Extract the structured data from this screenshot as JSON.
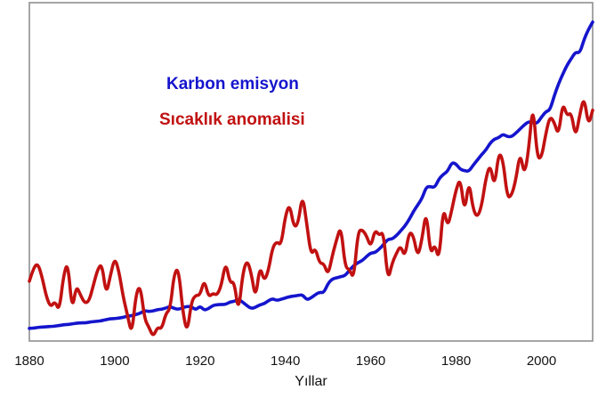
{
  "chart_data": {
    "type": "line",
    "title": "",
    "xlabel": "Yıllar",
    "x": {
      "start": 1880,
      "end": 2012,
      "step": 1
    },
    "xticks": [
      1880,
      1900,
      1920,
      1940,
      1960,
      1980,
      2000
    ],
    "y_axis_visible": false,
    "grid": false,
    "legend_position": "inside-top-left",
    "plot_border_color": "#8f8f8f",
    "background_color": "#ffffff",
    "tick_label_color": "#141414",
    "series": [
      {
        "id": "karbon-emisyon",
        "name": "Karbon emisyon",
        "color": "#1515cd",
        "render_ylim": [
          -0.15,
          10.3
        ],
        "values": [
          0.24,
          0.25,
          0.27,
          0.28,
          0.29,
          0.3,
          0.31,
          0.33,
          0.35,
          0.36,
          0.38,
          0.4,
          0.41,
          0.41,
          0.43,
          0.45,
          0.46,
          0.48,
          0.51,
          0.54,
          0.54,
          0.56,
          0.58,
          0.62,
          0.63,
          0.67,
          0.71,
          0.79,
          0.76,
          0.78,
          0.82,
          0.83,
          0.87,
          0.92,
          0.85,
          0.83,
          0.88,
          0.92,
          0.91,
          0.81,
          0.93,
          0.8,
          0.85,
          0.95,
          0.97,
          0.98,
          0.98,
          1.06,
          1.07,
          1.14,
          1.05,
          0.94,
          0.85,
          0.89,
          0.97,
          1.0,
          1.09,
          1.16,
          1.1,
          1.14,
          1.18,
          1.22,
          1.24,
          1.26,
          1.28,
          1.12,
          1.18,
          1.28,
          1.36,
          1.34,
          1.63,
          1.77,
          1.8,
          1.84,
          1.87,
          2.04,
          2.18,
          2.27,
          2.33,
          2.46,
          2.57,
          2.58,
          2.69,
          2.83,
          2.99,
          3.0,
          3.1,
          3.25,
          3.4,
          3.6,
          3.85,
          4.05,
          4.25,
          4.61,
          4.62,
          4.59,
          4.86,
          5.0,
          5.09,
          5.37,
          5.32,
          5.15,
          5.11,
          5.09,
          5.28,
          5.44,
          5.61,
          5.75,
          5.97,
          6.09,
          6.13,
          6.24,
          6.16,
          6.16,
          6.27,
          6.4,
          6.53,
          6.63,
          6.6,
          6.57,
          6.77,
          6.93,
          6.98,
          7.42,
          7.79,
          8.09,
          8.37,
          8.57,
          8.78,
          8.74,
          9.17,
          9.47,
          9.7
        ]
      },
      {
        "id": "sicaklik-anomalisi",
        "name": "Sıcaklık anomalisi",
        "color": "#c11111",
        "render_ylim": [
          -0.5,
          1.2
        ],
        "values": [
          -0.2,
          -0.13,
          -0.11,
          -0.18,
          -0.28,
          -0.33,
          -0.3,
          -0.35,
          -0.17,
          -0.1,
          -0.35,
          -0.22,
          -0.27,
          -0.31,
          -0.3,
          -0.22,
          -0.14,
          -0.11,
          -0.27,
          -0.17,
          -0.08,
          -0.15,
          -0.28,
          -0.37,
          -0.47,
          -0.26,
          -0.22,
          -0.39,
          -0.43,
          -0.48,
          -0.43,
          -0.44,
          -0.36,
          -0.34,
          -0.15,
          -0.14,
          -0.36,
          -0.46,
          -0.3,
          -0.27,
          -0.27,
          -0.19,
          -0.28,
          -0.26,
          -0.27,
          -0.22,
          -0.1,
          -0.21,
          -0.2,
          -0.36,
          -0.16,
          -0.09,
          -0.16,
          -0.29,
          -0.12,
          -0.2,
          -0.15,
          -0.03,
          0.0,
          -0.02,
          0.13,
          0.19,
          0.07,
          0.09,
          0.24,
          0.09,
          -0.07,
          -0.03,
          -0.11,
          -0.11,
          -0.17,
          -0.07,
          0.01,
          0.08,
          -0.13,
          -0.14,
          -0.19,
          0.05,
          0.06,
          0.03,
          -0.03,
          0.06,
          0.03,
          0.05,
          -0.2,
          -0.11,
          -0.06,
          -0.02,
          -0.08,
          0.05,
          0.03,
          -0.08,
          0.01,
          0.16,
          -0.07,
          -0.01,
          -0.1,
          0.18,
          0.07,
          0.16,
          0.26,
          0.32,
          0.14,
          0.31,
          0.16,
          0.12,
          0.18,
          0.32,
          0.39,
          0.27,
          0.45,
          0.41,
          0.22,
          0.23,
          0.31,
          0.45,
          0.33,
          0.46,
          0.7,
          0.42,
          0.42,
          0.54,
          0.63,
          0.6,
          0.53,
          0.7,
          0.63,
          0.65,
          0.52,
          0.64,
          0.73,
          0.58,
          0.66
        ]
      }
    ]
  }
}
